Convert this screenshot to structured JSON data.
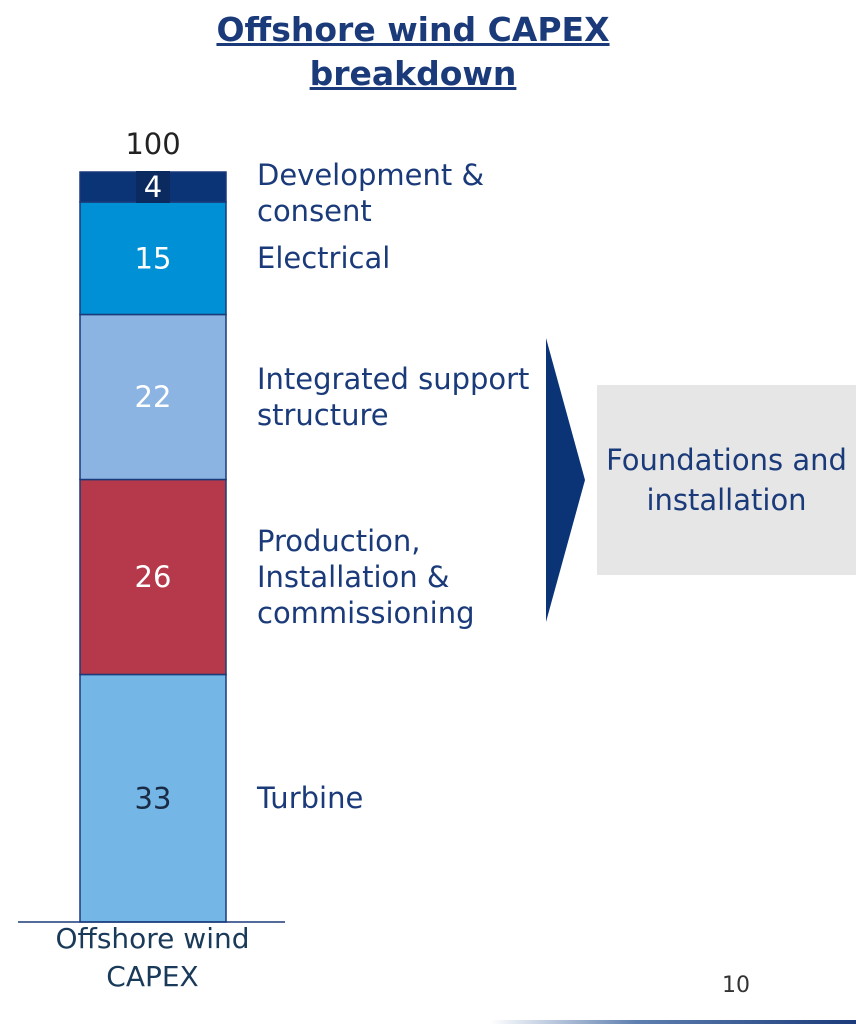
{
  "chart_data": {
    "type": "stacked_bar",
    "title": "Offshore wind CAPEX breakdown",
    "categories": [
      "Offshore wind CAPEX"
    ],
    "series": [
      {
        "name": "Turbine",
        "color": "#74b6e6",
        "values": [
          33
        ]
      },
      {
        "name": "Production, Installation & commissioning",
        "color": "#b5384b",
        "values": [
          26
        ]
      },
      {
        "name": "Integrated support structure",
        "color": "#8cb4e2",
        "values": [
          22
        ]
      },
      {
        "name": "Electrical",
        "color": "#0090d6",
        "values": [
          15
        ]
      },
      {
        "name": "Development & consent",
        "color": "#0b3477",
        "values": [
          4
        ]
      }
    ],
    "total": 100,
    "ylim": [
      0,
      100
    ],
    "annotation": "Foundations and installation",
    "page_number": 10
  }
}
